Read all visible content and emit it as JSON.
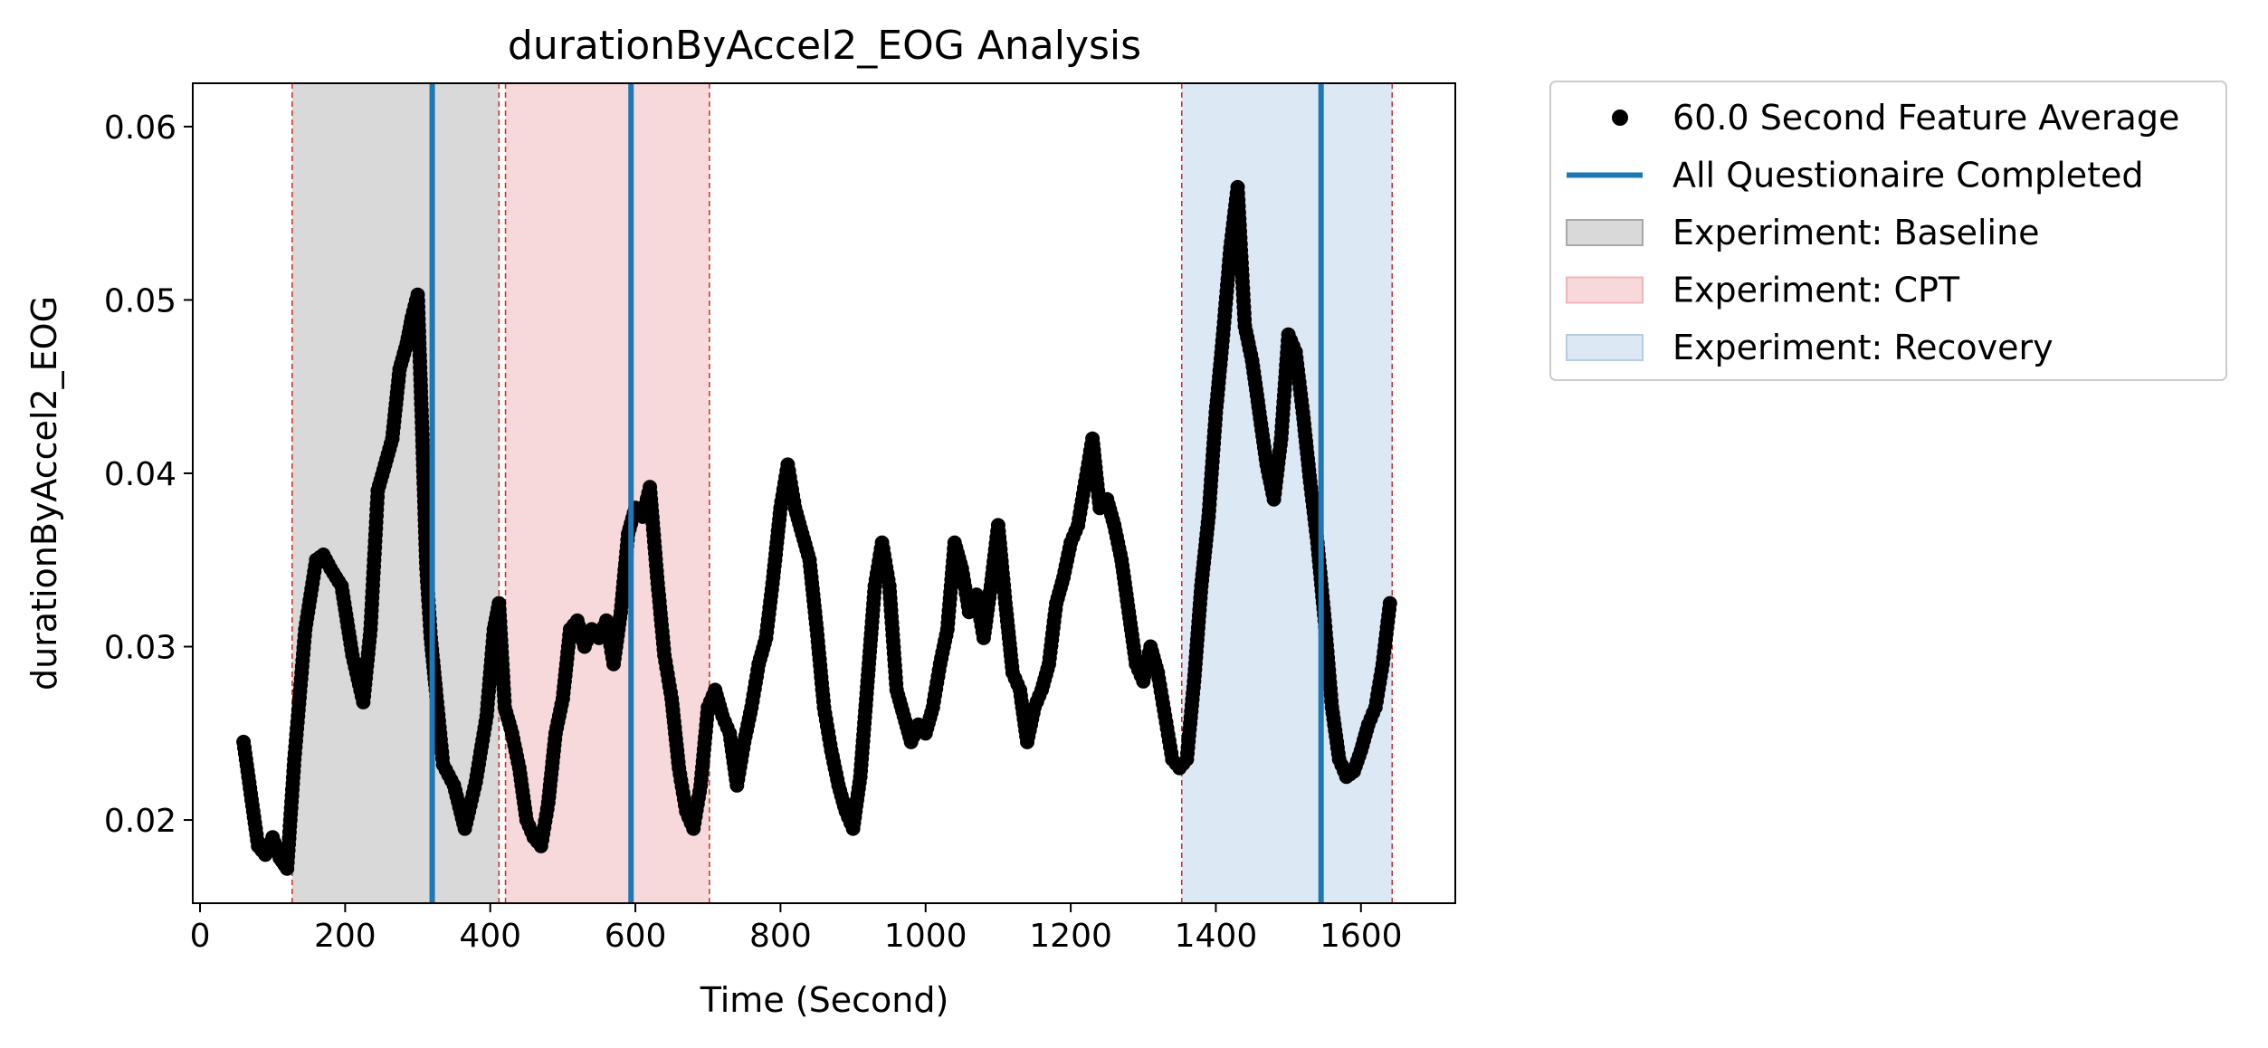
{
  "chart_data": {
    "type": "scatter",
    "title": "durationByAccel2_EOG Analysis",
    "xlabel": "Time (Second)",
    "ylabel": "durationByAccel2_EOG",
    "xlim": [
      -10,
      1730
    ],
    "ylim": [
      0.0152,
      0.0625
    ],
    "xticks": [
      0,
      200,
      400,
      600,
      800,
      1000,
      1200,
      1400,
      1600
    ],
    "yticks": [
      0.02,
      0.03,
      0.04,
      0.05,
      0.06
    ],
    "xtick_labels": [
      "0",
      "200",
      "400",
      "600",
      "800",
      "1000",
      "1200",
      "1400",
      "1600"
    ],
    "ytick_labels": [
      "0.02",
      "0.03",
      "0.04",
      "0.05",
      "0.06"
    ],
    "grid": false,
    "legend_position": "outside right, top",
    "colors": {
      "points": "#000000",
      "questionnaire_line": "#1f77b4",
      "boundary_line": "#d62728",
      "baseline_fill": "#d9d9d9",
      "cpt_fill": "#f7d9db",
      "recovery_fill": "#dce8f3"
    },
    "series": [
      {
        "name": "60.0 Second Feature Average",
        "marker": "dot",
        "x": [
          60,
          70,
          80,
          90,
          100,
          110,
          120,
          130,
          145,
          160,
          170,
          180,
          195,
          210,
          225,
          235,
          245,
          255,
          265,
          275,
          285,
          292,
          300,
          305,
          312,
          318,
          325,
          335,
          350,
          365,
          380,
          395,
          405,
          412,
          420,
          430,
          440,
          450,
          460,
          470,
          480,
          490,
          500,
          510,
          520,
          530,
          540,
          550,
          560,
          570,
          580,
          590,
          600,
          610,
          620,
          630,
          640,
          650,
          660,
          670,
          680,
          690,
          700,
          710,
          720,
          730,
          740,
          750,
          760,
          770,
          780,
          790,
          800,
          810,
          820,
          830,
          840,
          850,
          860,
          870,
          880,
          890,
          900,
          910,
          920,
          930,
          940,
          950,
          960,
          970,
          980,
          990,
          1000,
          1010,
          1020,
          1030,
          1040,
          1050,
          1060,
          1070,
          1080,
          1090,
          1100,
          1110,
          1120,
          1130,
          1140,
          1150,
          1160,
          1170,
          1180,
          1190,
          1200,
          1210,
          1220,
          1230,
          1240,
          1250,
          1260,
          1270,
          1280,
          1290,
          1300,
          1310,
          1320,
          1330,
          1340,
          1350,
          1360,
          1370,
          1380,
          1390,
          1400,
          1410,
          1420,
          1430,
          1440,
          1450,
          1460,
          1470,
          1480,
          1490,
          1500,
          1510,
          1520,
          1530,
          1540,
          1550,
          1560,
          1570,
          1580,
          1590,
          1600,
          1610,
          1620,
          1630,
          1640
        ],
        "y": [
          0.0245,
          0.0215,
          0.0185,
          0.018,
          0.019,
          0.0178,
          0.0172,
          0.0235,
          0.031,
          0.035,
          0.0353,
          0.0345,
          0.0335,
          0.0295,
          0.0268,
          0.031,
          0.039,
          0.0405,
          0.042,
          0.046,
          0.0475,
          0.049,
          0.0503,
          0.044,
          0.0345,
          0.0305,
          0.0275,
          0.0232,
          0.022,
          0.0195,
          0.0222,
          0.026,
          0.031,
          0.0325,
          0.0265,
          0.025,
          0.023,
          0.02,
          0.019,
          0.0185,
          0.021,
          0.025,
          0.027,
          0.031,
          0.0315,
          0.03,
          0.031,
          0.0305,
          0.0315,
          0.029,
          0.032,
          0.0365,
          0.038,
          0.0375,
          0.0392,
          0.034,
          0.0295,
          0.027,
          0.023,
          0.0205,
          0.0195,
          0.022,
          0.0265,
          0.0275,
          0.026,
          0.025,
          0.022,
          0.0245,
          0.0265,
          0.029,
          0.0305,
          0.034,
          0.038,
          0.0405,
          0.038,
          0.0365,
          0.035,
          0.031,
          0.0265,
          0.024,
          0.022,
          0.0205,
          0.0195,
          0.0225,
          0.028,
          0.0335,
          0.036,
          0.0335,
          0.0275,
          0.026,
          0.0245,
          0.0255,
          0.025,
          0.0265,
          0.029,
          0.031,
          0.036,
          0.0345,
          0.032,
          0.033,
          0.0305,
          0.0335,
          0.037,
          0.0325,
          0.0285,
          0.0275,
          0.0245,
          0.0265,
          0.0275,
          0.029,
          0.0325,
          0.034,
          0.036,
          0.037,
          0.0395,
          0.042,
          0.038,
          0.0385,
          0.037,
          0.035,
          0.032,
          0.029,
          0.028,
          0.03,
          0.0285,
          0.026,
          0.0235,
          0.023,
          0.0235,
          0.028,
          0.0335,
          0.0375,
          0.0435,
          0.048,
          0.053,
          0.0565,
          0.0485,
          0.0465,
          0.0435,
          0.0405,
          0.0385,
          0.042,
          0.048,
          0.047,
          0.0435,
          0.0395,
          0.036,
          0.0315,
          0.0265,
          0.0235,
          0.0225,
          0.0228,
          0.024,
          0.0255,
          0.0265,
          0.029,
          0.0325
        ]
      },
      {
        "name": "All Questionaire Completed",
        "type": "vline",
        "x": [
          320,
          594,
          1545
        ]
      }
    ],
    "phases": [
      {
        "name": "Experiment: Baseline",
        "start": 127,
        "end": 412
      },
      {
        "name": "Experiment: CPT",
        "start": 421,
        "end": 702
      },
      {
        "name": "Experiment: Recovery",
        "start": 1353,
        "end": 1643
      }
    ],
    "legend": [
      {
        "label": "60.0 Second Feature Average",
        "kind": "dot"
      },
      {
        "label": "All Questionaire Completed",
        "kind": "line"
      },
      {
        "label": "Experiment: Baseline",
        "kind": "patch-baseline"
      },
      {
        "label": "Experiment: CPT",
        "kind": "patch-cpt"
      },
      {
        "label": "Experiment: Recovery",
        "kind": "patch-recovery"
      }
    ]
  }
}
